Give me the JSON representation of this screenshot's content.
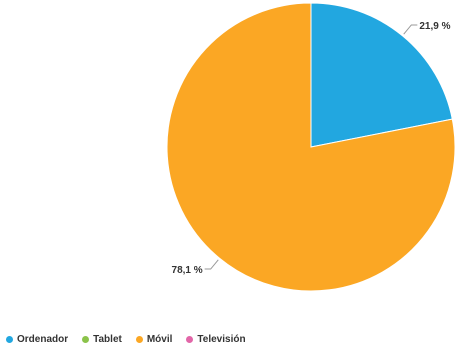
{
  "chart_data": {
    "type": "pie",
    "title": "",
    "categories": [
      "Ordenador",
      "Tablet",
      "Móvil",
      "Televisión"
    ],
    "values": [
      21.9,
      0,
      78.1,
      0
    ],
    "value_labels": [
      "21,9 %",
      "",
      "78,1 %",
      ""
    ],
    "colors": [
      "#22a7e0",
      "#8bc34a",
      "#fba724",
      "#e266a8"
    ],
    "legend_position": "bottom-left"
  }
}
